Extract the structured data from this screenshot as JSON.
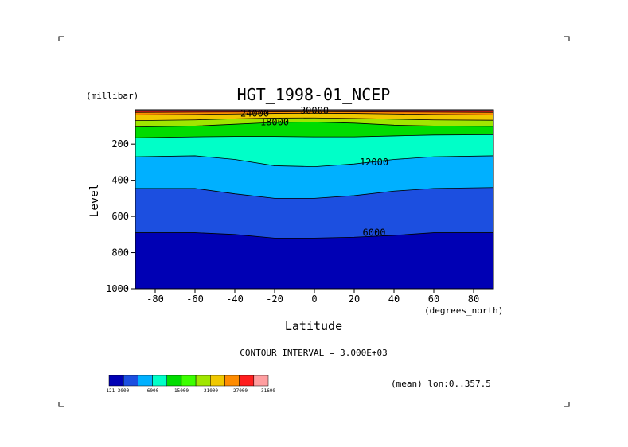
{
  "chart_data": {
    "type": "contour",
    "title": "HGT_1998-01_NCEP",
    "xlabel": "Latitude",
    "x_units": "(degrees_north)",
    "ylabel": "Level",
    "y_units": "(millibar)",
    "xlim": [
      -90,
      90
    ],
    "ylim": [
      1000,
      10
    ],
    "y_reversed": true,
    "grid": false,
    "x_ticks": [
      "-80",
      "-60",
      "-40",
      "-20",
      "0",
      "20",
      "40",
      "60",
      "80"
    ],
    "y_ticks": [
      "200",
      "400",
      "600",
      "800",
      "1000"
    ],
    "contour_interval_text": "CONTOUR INTERVAL = 3.000E+03",
    "contour_labels": [
      "30000",
      "24000",
      "18000",
      "12000",
      "6000"
    ],
    "annotation": "(mean) lon:0..357.5",
    "colorbar": {
      "colors": [
        "#0000b4",
        "#1c4fe0",
        "#00b0ff",
        "#00ffc8",
        "#00dc00",
        "#3cff00",
        "#a0e600",
        "#f0c800",
        "#ff8c00",
        "#ff1e1e",
        "#ff9ea0"
      ],
      "labels": [
        "-121",
        "3000",
        "6000",
        "15000",
        "21000",
        "27000",
        "31600"
      ]
    },
    "isolines": [
      {
        "value": 30000,
        "x": [
          -90,
          90
        ],
        "p": [
          15,
          15
        ]
      },
      {
        "value": 27000,
        "x": [
          -90,
          -40,
          0,
          40,
          90
        ],
        "p": [
          24,
          22,
          20,
          22,
          24
        ]
      },
      {
        "value": 24000,
        "x": [
          -90,
          -60,
          -40,
          -20,
          0,
          20,
          40,
          60,
          90
        ],
        "p": [
          38,
          36,
          33,
          30,
          29,
          30,
          33,
          36,
          38
        ]
      },
      {
        "value": 21000,
        "x": [
          -90,
          -60,
          -40,
          -20,
          0,
          20,
          40,
          60,
          90
        ],
        "p": [
          70,
          66,
          60,
          56,
          55,
          58,
          62,
          66,
          68
        ]
      },
      {
        "value": 18000,
        "x": [
          -90,
          -60,
          -40,
          -20,
          0,
          20,
          40,
          60,
          90
        ],
        "p": [
          105,
          100,
          90,
          80,
          78,
          84,
          95,
          100,
          102
        ]
      },
      {
        "value": 15000,
        "x": [
          -90,
          -60,
          -40,
          -20,
          0,
          20,
          40,
          60,
          90
        ],
        "p": [
          165,
          160,
          158,
          158,
          160,
          160,
          155,
          150,
          148
        ]
      },
      {
        "value": 12000,
        "x": [
          -90,
          -60,
          -40,
          -20,
          0,
          20,
          40,
          60,
          90
        ],
        "p": [
          270,
          265,
          285,
          320,
          325,
          310,
          285,
          270,
          265
        ]
      },
      {
        "value": 9000,
        "x": [
          -90,
          -60,
          -40,
          -20,
          0,
          20,
          40,
          60,
          90
        ],
        "p": [
          445,
          445,
          475,
          500,
          500,
          485,
          460,
          445,
          440
        ]
      },
      {
        "value": 6000,
        "x": [
          -90,
          -60,
          -40,
          -20,
          0,
          20,
          40,
          60,
          90
        ],
        "p": [
          690,
          690,
          700,
          720,
          720,
          715,
          705,
          690,
          690
        ]
      }
    ]
  }
}
